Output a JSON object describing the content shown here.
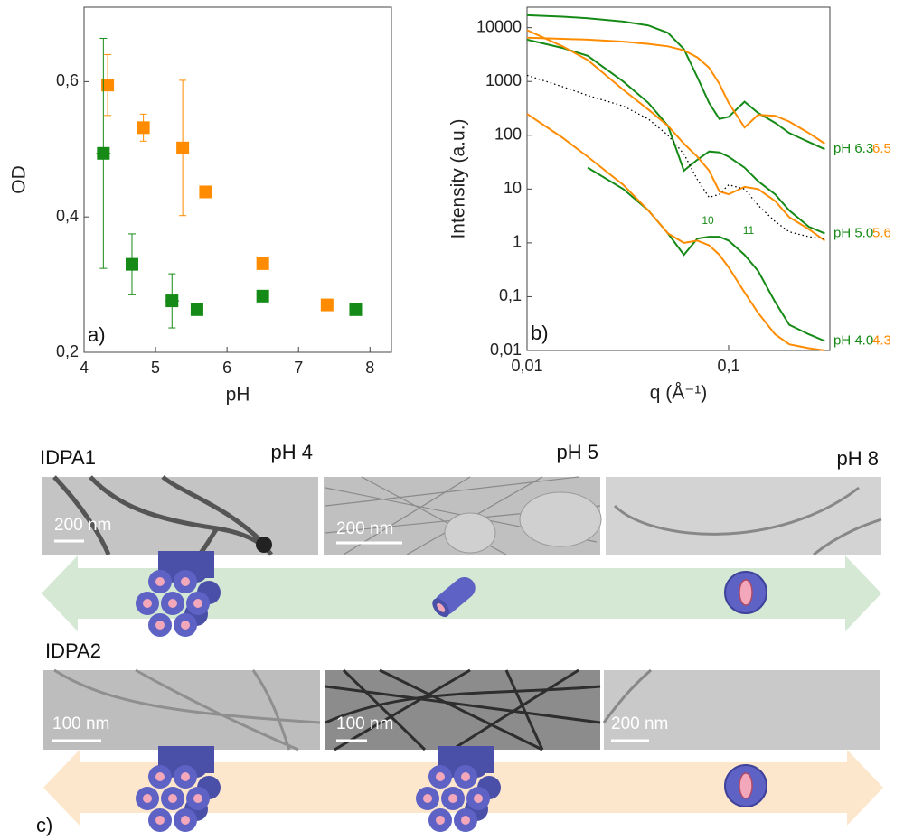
{
  "chart_data": [
    {
      "type": "scatter",
      "panel_label": "a)",
      "xlabel": "pH",
      "ylabel": "OD",
      "xlim": [
        4,
        8.3
      ],
      "ylim": [
        0.2,
        0.71
      ],
      "xticks": [
        4,
        5,
        6,
        7,
        8
      ],
      "yticks": [
        {
          "value": 0.2,
          "label": "0,2"
        },
        {
          "value": 0.4,
          "label": "0,4"
        },
        {
          "value": 0.6,
          "label": "0,6"
        }
      ],
      "series": [
        {
          "color": "#ff8c00",
          "x": [
            4.33,
            4.83,
            5.38,
            5.7,
            6.5,
            7.4
          ],
          "values": [
            0.595,
            0.532,
            0.502,
            0.437,
            0.331,
            0.27
          ],
          "y_err": [
            0.045,
            0.02,
            0.1,
            null,
            null,
            null
          ]
        },
        {
          "color": "#168a16",
          "x": [
            4.27,
            4.67,
            5.23,
            5.58,
            6.5,
            7.8
          ],
          "values": [
            0.494,
            0.33,
            0.276,
            0.263,
            0.283,
            0.263
          ],
          "y_err": [
            0.17,
            0.045,
            0.04,
            null,
            null,
            null
          ],
          "x_err": [
            0.1,
            null,
            0.1,
            null,
            null,
            null
          ]
        }
      ]
    },
    {
      "type": "line",
      "panel_label": "b)",
      "xlabel": "q (Å⁻¹)",
      "ylabel": "Intensity (a.u.)",
      "xscale": "log",
      "yscale": "log",
      "xlim": [
        0.01,
        0.318
      ],
      "ylim": [
        0.01,
        24000
      ],
      "xticks": [
        {
          "value": 0.01,
          "label": "0,01"
        },
        {
          "value": 0.1,
          "label": "0,1"
        }
      ],
      "yticks": [
        {
          "value": 0.01,
          "label": "0,01"
        },
        {
          "value": 0.1,
          "label": "0,1"
        },
        1,
        10,
        100,
        1000,
        10000
      ],
      "annotations": [
        "10",
        "11"
      ],
      "x": [
        0.01,
        0.015,
        0.02,
        0.03,
        0.04,
        0.05,
        0.06,
        0.07,
        0.08,
        0.09,
        0.1,
        0.12,
        0.14,
        0.17,
        0.2,
        0.25,
        0.3
      ],
      "series": [
        {
          "name": "pH 6.3",
          "color": "#168a16",
          "values": [
            17000,
            16000,
            15000,
            13000,
            11000,
            8000,
            4000,
            1200,
            400,
            200,
            220,
            420,
            260,
            170,
            110,
            75,
            55
          ]
        },
        {
          "name": "6.5",
          "color": "#ff8c00",
          "values": [
            6500,
            6200,
            6000,
            5500,
            5000,
            4500,
            3800,
            2800,
            1800,
            900,
            400,
            140,
            240,
            230,
            180,
            110,
            70
          ]
        },
        {
          "name": "pH 5.0",
          "color": "#168a16",
          "values": [
            6000,
            4200,
            3000,
            1000,
            400,
            150,
            22,
            35,
            50,
            48,
            40,
            25,
            14,
            8,
            4,
            2,
            1.5
          ]
        },
        {
          "name": "5.6",
          "color": "#ff8c00",
          "values": [
            9000,
            4500,
            2500,
            700,
            300,
            150,
            70,
            40,
            22,
            9,
            8,
            11,
            10,
            6,
            3,
            1.8,
            1.1
          ]
        },
        {
          "name": "pH 4.0",
          "color": "#168a16",
          "values": [
            null,
            null,
            25,
            10,
            4,
            1.5,
            0.6,
            1.2,
            1.3,
            1.3,
            1.1,
            0.6,
            0.3,
            0.08,
            0.03,
            0.02,
            0.015
          ]
        },
        {
          "name": "4.3",
          "color": "#ff8c00",
          "values": [
            250,
            90,
            40,
            12,
            4,
            1.5,
            1.0,
            1.1,
            0.9,
            0.6,
            0.35,
            0.12,
            0.05,
            0.02,
            0.013,
            0.011,
            0.01
          ]
        },
        {
          "color": "#000000",
          "dash": true,
          "values": [
            1300,
            800,
            550,
            350,
            200,
            100,
            45,
            15,
            7,
            8,
            12,
            10,
            5,
            2.5,
            1.6,
            1.3,
            1.2
          ]
        }
      ]
    }
  ],
  "panel_c": {
    "label": "c)",
    "rows": [
      {
        "title": "IDPA1",
        "columns": [
          {
            "ph": "pH 4",
            "scale": "200 nm"
          },
          {
            "ph": "pH 5",
            "scale": "200 nm"
          },
          {
            "ph": "pH 8"
          }
        ]
      },
      {
        "title": "IDPA2",
        "columns": [
          {
            "scale": "100 nm"
          },
          {
            "scale": "100 nm"
          },
          {
            "scale": "200 nm"
          }
        ]
      }
    ]
  }
}
